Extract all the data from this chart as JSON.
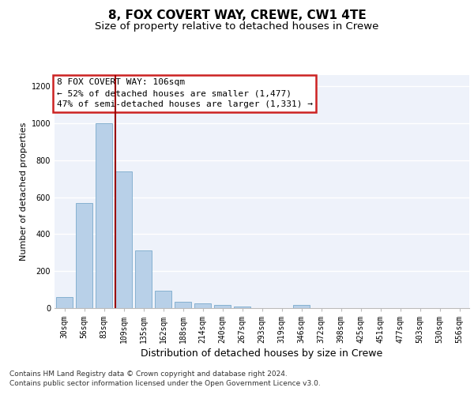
{
  "title1": "8, FOX COVERT WAY, CREWE, CW1 4TE",
  "title2": "Size of property relative to detached houses in Crewe",
  "xlabel": "Distribution of detached houses by size in Crewe",
  "ylabel": "Number of detached properties",
  "footer1": "Contains HM Land Registry data © Crown copyright and database right 2024.",
  "footer2": "Contains public sector information licensed under the Open Government Licence v3.0.",
  "annotation_line1": "8 FOX COVERT WAY: 106sqm",
  "annotation_line2": "← 52% of detached houses are smaller (1,477)",
  "annotation_line3": "47% of semi-detached houses are larger (1,331) →",
  "bar_color": "#b8d0e8",
  "bar_edge_color": "#7aaacb",
  "red_line_color": "#990000",
  "annotation_border_color": "#cc2222",
  "background_color": "#e8eef8",
  "plot_bg_color": "#eef2fa",
  "categories": [
    "30sqm",
    "56sqm",
    "83sqm",
    "109sqm",
    "135sqm",
    "162sqm",
    "188sqm",
    "214sqm",
    "240sqm",
    "267sqm",
    "293sqm",
    "319sqm",
    "346sqm",
    "372sqm",
    "398sqm",
    "425sqm",
    "451sqm",
    "477sqm",
    "503sqm",
    "530sqm",
    "556sqm"
  ],
  "values": [
    60,
    570,
    1000,
    740,
    310,
    95,
    35,
    25,
    15,
    10,
    0,
    0,
    15,
    0,
    0,
    0,
    0,
    0,
    0,
    0,
    0
  ],
  "red_line_bin_index": 3,
  "ylim_max": 1260,
  "yticks": [
    0,
    200,
    400,
    600,
    800,
    1000,
    1200
  ],
  "title1_fontsize": 11,
  "title2_fontsize": 9.5,
  "xlabel_fontsize": 9,
  "ylabel_fontsize": 8,
  "tick_fontsize": 7,
  "annotation_fontsize": 8,
  "footer_fontsize": 6.5
}
